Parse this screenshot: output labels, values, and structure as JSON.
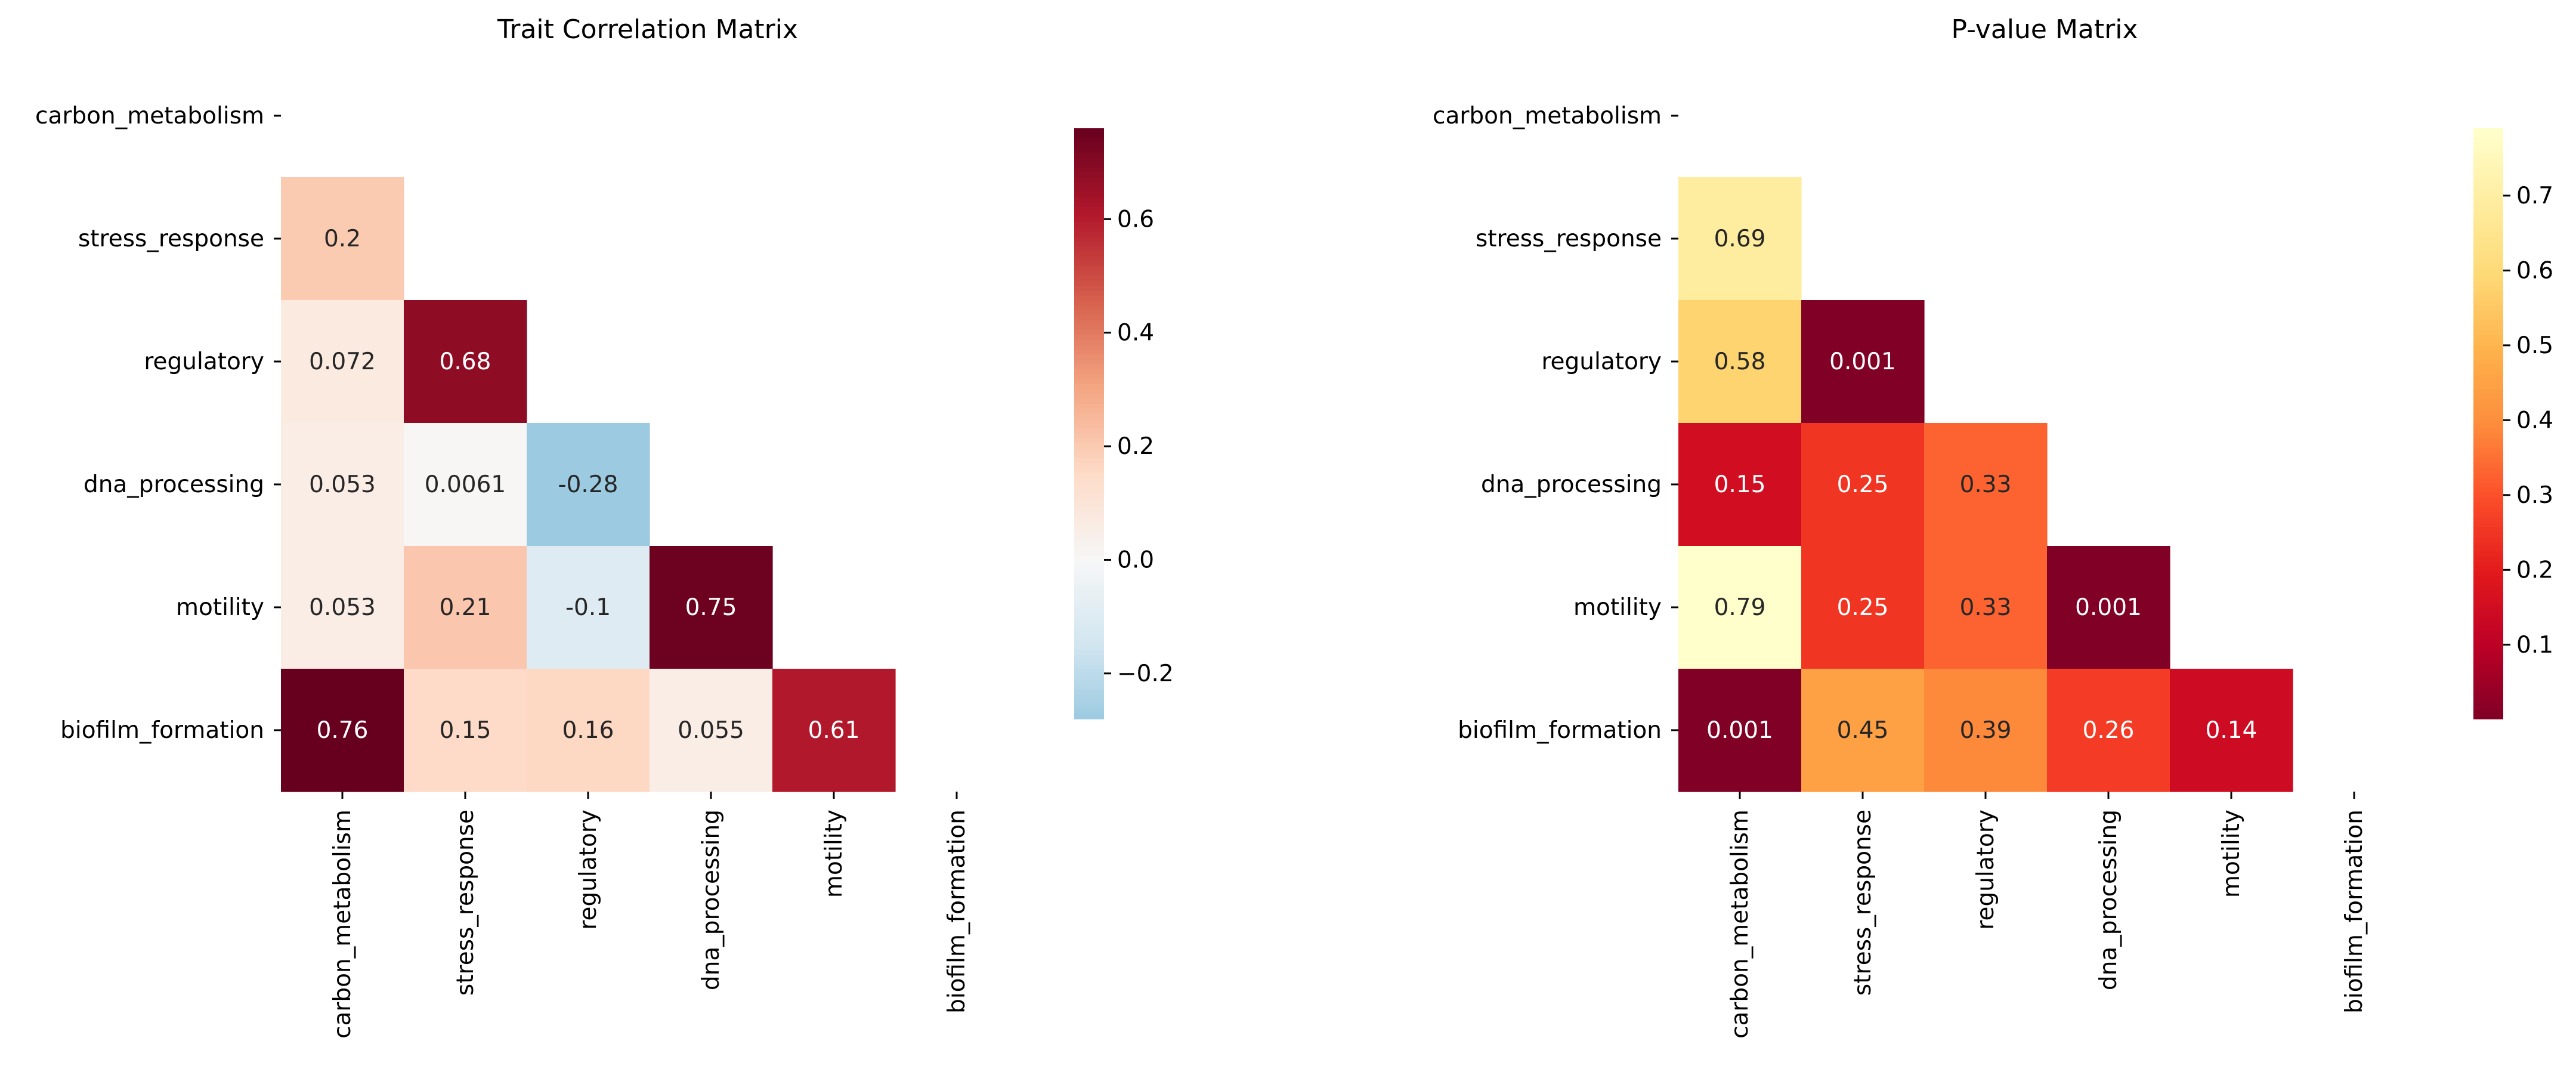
{
  "chart_data": [
    {
      "type": "heatmap",
      "title": "Trait Correlation Matrix",
      "xlabel": "",
      "ylabel": "",
      "x_categories": [
        "carbon_metabolism",
        "stress_response",
        "regulatory",
        "dna_processing",
        "motility",
        "biofilm_formation"
      ],
      "y_categories": [
        "carbon_metabolism",
        "stress_response",
        "regulatory",
        "dna_processing",
        "motility",
        "biofilm_formation"
      ],
      "mask": "upper-triangle-including-diagonal",
      "values": [
        [
          null,
          null,
          null,
          null,
          null,
          null
        ],
        [
          0.2,
          null,
          null,
          null,
          null,
          null
        ],
        [
          0.072,
          0.68,
          null,
          null,
          null,
          null
        ],
        [
          0.053,
          0.0061,
          -0.28,
          null,
          null,
          null
        ],
        [
          0.053,
          0.21,
          -0.1,
          0.75,
          null,
          null
        ],
        [
          0.76,
          0.15,
          0.16,
          0.055,
          0.61,
          null
        ]
      ],
      "cell_labels": [
        [
          null,
          null,
          null,
          null,
          null,
          null
        ],
        [
          "0.2",
          null,
          null,
          null,
          null,
          null
        ],
        [
          "0.072",
          "0.68",
          null,
          null,
          null,
          null
        ],
        [
          "0.053",
          "0.0061",
          "-0.28",
          null,
          null,
          null
        ],
        [
          "0.053",
          "0.21",
          "-0.1",
          "0.75",
          null,
          null
        ],
        [
          "0.76",
          "0.15",
          "0.16",
          "0.055",
          "0.61",
          null
        ]
      ],
      "colormap": "RdBu_r",
      "center": 0,
      "color_range": [
        -0.28,
        0.76
      ],
      "colorbar": {
        "ticks": [
          -0.2,
          0.0,
          0.2,
          0.4,
          0.6
        ],
        "tick_labels": [
          "−0.2",
          "0.0",
          "0.2",
          "0.4",
          "0.6"
        ]
      },
      "grid": false
    },
    {
      "type": "heatmap",
      "title": "P-value Matrix",
      "xlabel": "",
      "ylabel": "",
      "x_categories": [
        "carbon_metabolism",
        "stress_response",
        "regulatory",
        "dna_processing",
        "motility",
        "biofilm_formation"
      ],
      "y_categories": [
        "carbon_metabolism",
        "stress_response",
        "regulatory",
        "dna_processing",
        "motility",
        "biofilm_formation"
      ],
      "mask": "upper-triangle-including-diagonal",
      "values": [
        [
          null,
          null,
          null,
          null,
          null,
          null
        ],
        [
          0.69,
          null,
          null,
          null,
          null,
          null
        ],
        [
          0.58,
          0.001,
          null,
          null,
          null,
          null
        ],
        [
          0.15,
          0.25,
          0.33,
          null,
          null,
          null
        ],
        [
          0.79,
          0.25,
          0.33,
          0.001,
          null,
          null
        ],
        [
          0.001,
          0.45,
          0.39,
          0.26,
          0.14,
          null
        ]
      ],
      "cell_labels": [
        [
          null,
          null,
          null,
          null,
          null,
          null
        ],
        [
          "0.69",
          null,
          null,
          null,
          null,
          null
        ],
        [
          "0.58",
          "0.001",
          null,
          null,
          null,
          null
        ],
        [
          "0.15",
          "0.25",
          "0.33",
          null,
          null,
          null
        ],
        [
          "0.79",
          "0.25",
          "0.33",
          "0.001",
          null,
          null
        ],
        [
          "0.001",
          "0.45",
          "0.39",
          "0.26",
          "0.14",
          null
        ]
      ],
      "colormap": "YlOrRd_r",
      "color_range": [
        0.001,
        0.79
      ],
      "colorbar": {
        "ticks": [
          0.1,
          0.2,
          0.3,
          0.4,
          0.5,
          0.6,
          0.7
        ],
        "tick_labels": [
          "0.1",
          "0.2",
          "0.3",
          "0.4",
          "0.5",
          "0.6",
          "0.7"
        ]
      },
      "grid": false
    }
  ],
  "colors": {
    "background": "#ffffff",
    "text_dark": "#262626",
    "text_light": "#ffffff"
  }
}
